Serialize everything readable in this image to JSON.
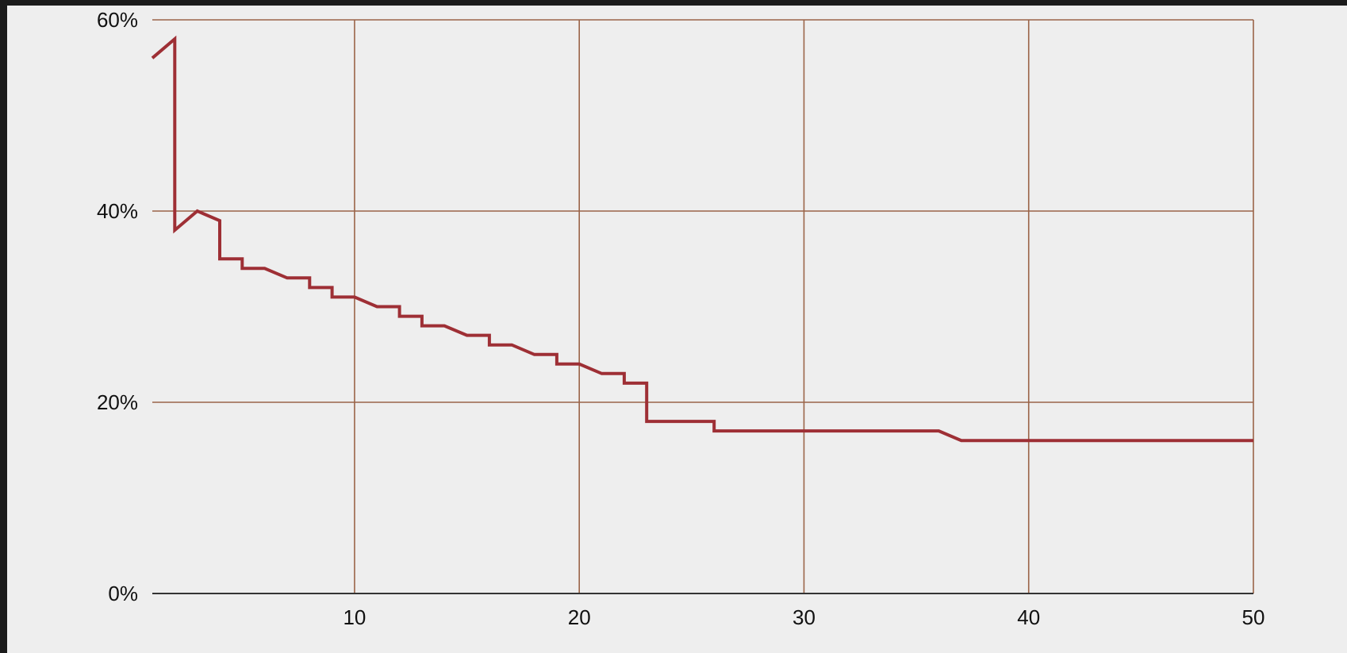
{
  "chart_data": {
    "type": "line",
    "title": "",
    "xlabel": "",
    "ylabel": "",
    "xlim": [
      1,
      50
    ],
    "ylim": [
      0,
      60
    ],
    "x_ticks": [
      10,
      20,
      30,
      40,
      50
    ],
    "x_tick_labels": [
      "10",
      "20",
      "30",
      "40",
      "50"
    ],
    "y_ticks": [
      0,
      20,
      40,
      60
    ],
    "y_tick_labels": [
      "0%",
      "20%",
      "40%",
      "60%"
    ],
    "grid": true,
    "legend": "none",
    "colors": {
      "series": "#9e2f35",
      "grid": "#9a6448",
      "axis": "#333333",
      "background": "#eeeeee"
    },
    "series": [
      {
        "values": [
          [
            1,
            56
          ],
          [
            2,
            58
          ],
          [
            2,
            38
          ],
          [
            3,
            40
          ],
          [
            4,
            39
          ],
          [
            4,
            35
          ],
          [
            5,
            35
          ],
          [
            5,
            34
          ],
          [
            6,
            34
          ],
          [
            7,
            33
          ],
          [
            8,
            33
          ],
          [
            8,
            32
          ],
          [
            9,
            32
          ],
          [
            9,
            31
          ],
          [
            10,
            31
          ],
          [
            11,
            30
          ],
          [
            12,
            30
          ],
          [
            12,
            29
          ],
          [
            13,
            29
          ],
          [
            13,
            28
          ],
          [
            14,
            28
          ],
          [
            15,
            27
          ],
          [
            16,
            27
          ],
          [
            16,
            26
          ],
          [
            17,
            26
          ],
          [
            18,
            25
          ],
          [
            19,
            25
          ],
          [
            19,
            24
          ],
          [
            20,
            24
          ],
          [
            21,
            23
          ],
          [
            22,
            23
          ],
          [
            22,
            22
          ],
          [
            23,
            22
          ],
          [
            23,
            18
          ],
          [
            26,
            18
          ],
          [
            26,
            17
          ],
          [
            36,
            17
          ],
          [
            37,
            16
          ],
          [
            50,
            16
          ]
        ]
      }
    ]
  }
}
